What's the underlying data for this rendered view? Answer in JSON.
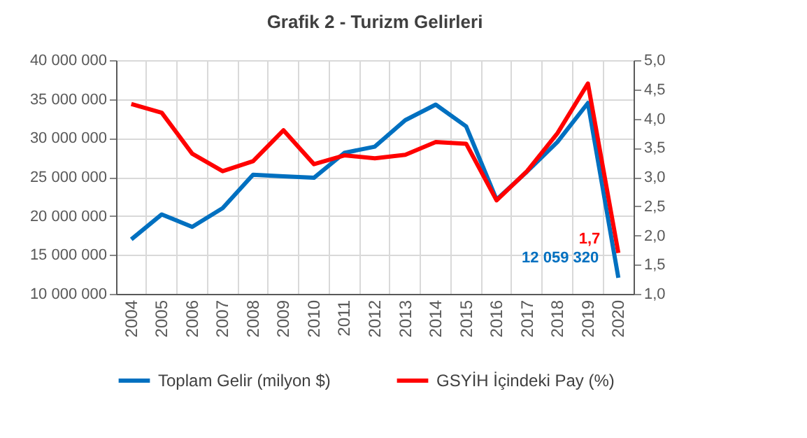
{
  "chart_data": {
    "type": "line",
    "title": "Grafik 2 - Turizm Gelirleri",
    "categories": [
      "2004",
      "2005",
      "2006",
      "2007",
      "2008",
      "2009",
      "2010",
      "2011",
      "2012",
      "2013",
      "2014",
      "2015",
      "2016",
      "2017",
      "2018",
      "2019",
      "2020"
    ],
    "series": [
      {
        "name": "Toplam Gelir (milyon $)",
        "color": "#0070c0",
        "values": [
          17000000,
          20200000,
          18600000,
          21000000,
          25300000,
          25100000,
          24900000,
          28100000,
          28900000,
          32300000,
          34300000,
          31500000,
          22100000,
          25700000,
          29500000,
          34500000,
          12059320
        ],
        "value_labels": [
          null,
          null,
          null,
          null,
          null,
          null,
          null,
          null,
          null,
          null,
          null,
          null,
          null,
          null,
          null,
          null,
          "12 059 320"
        ]
      },
      {
        "name": "GSYİH İçindeki Pay (%)",
        "color": "#ff0000",
        "axis": "y2",
        "values": [
          4.25,
          4.1,
          3.4,
          3.1,
          3.27,
          3.8,
          3.22,
          3.37,
          3.32,
          3.38,
          3.6,
          3.57,
          2.6,
          3.1,
          3.75,
          4.6,
          1.7
        ],
        "value_labels": [
          null,
          null,
          null,
          null,
          null,
          null,
          null,
          null,
          null,
          null,
          null,
          null,
          null,
          null,
          null,
          null,
          "1,7"
        ]
      }
    ],
    "ylim": [
      10000000,
      40000000
    ],
    "yticks": [
      {
        "value": 10000000,
        "label": "10 000 000"
      },
      {
        "value": 15000000,
        "label": "15 000 000"
      },
      {
        "value": 20000000,
        "label": "20 000 000"
      },
      {
        "value": 25000000,
        "label": "25 000 000"
      },
      {
        "value": 30000000,
        "label": "30 000 000"
      },
      {
        "value": 35000000,
        "label": "35 000 000"
      },
      {
        "value": 40000000,
        "label": "40 000 000"
      }
    ],
    "y2lim": [
      1,
      5
    ],
    "y2ticks": [
      {
        "value": 1,
        "label": "1,0"
      },
      {
        "value": 1.5,
        "label": "1,5"
      },
      {
        "value": 2,
        "label": "2,0"
      },
      {
        "value": 2.5,
        "label": "2,5"
      },
      {
        "value": 3,
        "label": "3,0"
      },
      {
        "value": 3.5,
        "label": "3,5"
      },
      {
        "value": 4,
        "label": "4,0"
      },
      {
        "value": 4.5,
        "label": "4,5"
      },
      {
        "value": 5,
        "label": "5,0"
      }
    ],
    "grid": true,
    "legend": "bottom",
    "marker": "none",
    "line_style": "solid"
  }
}
